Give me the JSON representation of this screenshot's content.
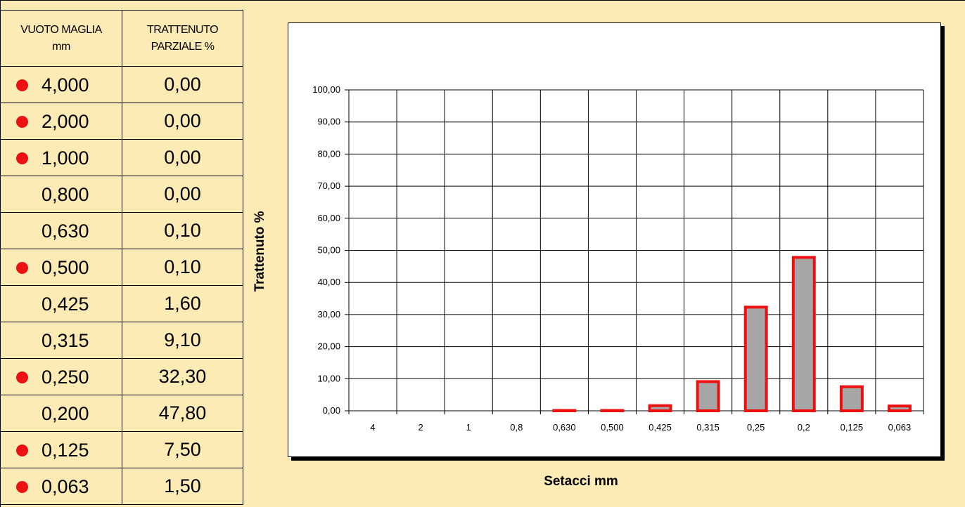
{
  "table": {
    "header_col1": "VUOTO MAGLIA mm",
    "header_col2": "TRATTENUTO PARZIALE %",
    "rows": [
      {
        "sieve": "4,000",
        "retained": "0,00",
        "marked": true
      },
      {
        "sieve": "2,000",
        "retained": "0,00",
        "marked": true
      },
      {
        "sieve": "1,000",
        "retained": "0,00",
        "marked": true
      },
      {
        "sieve": "0,800",
        "retained": "0,00",
        "marked": false
      },
      {
        "sieve": "0,630",
        "retained": "0,10",
        "marked": false
      },
      {
        "sieve": "0,500",
        "retained": "0,10",
        "marked": true
      },
      {
        "sieve": "0,425",
        "retained": "1,60",
        "marked": false
      },
      {
        "sieve": "0,315",
        "retained": "9,10",
        "marked": false
      },
      {
        "sieve": "0,250",
        "retained": "32,30",
        "marked": true
      },
      {
        "sieve": "0,200",
        "retained": "47,80",
        "marked": false
      },
      {
        "sieve": "0,125",
        "retained": "7,50",
        "marked": true
      },
      {
        "sieve": "0,063",
        "retained": "1,50",
        "marked": true
      }
    ],
    "marker_color": "#ee1111"
  },
  "chart_data": {
    "type": "bar",
    "categories": [
      "4",
      "2",
      "1",
      "0,8",
      "0,630",
      "0,500",
      "0,425",
      "0,315",
      "0,25",
      "0,2",
      "0,125",
      "0,063"
    ],
    "values": [
      0,
      0,
      0,
      0,
      0.1,
      0.1,
      1.6,
      9.1,
      32.3,
      47.8,
      7.5,
      1.5
    ],
    "ylabel": "Trattenuto %",
    "xlabel": "Setacci  mm",
    "ylim": [
      0,
      100
    ],
    "yticks": [
      "0,00",
      "10,00",
      "20,00",
      "30,00",
      "40,00",
      "50,00",
      "60,00",
      "70,00",
      "80,00",
      "90,00",
      "100,00"
    ],
    "grid": true,
    "bar_fill": "#a6a6a6",
    "bar_edge": "#ee1111",
    "background": "#fdebb5"
  }
}
